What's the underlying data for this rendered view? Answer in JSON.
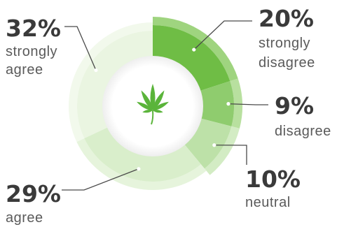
{
  "chart_data": {
    "type": "pie",
    "style": "donut",
    "slices": [
      {
        "percent_label": "20%",
        "value": 20,
        "category": [
          "strongly",
          "disagree"
        ],
        "color": "#6fbd45",
        "rim_color": "#9fd47f"
      },
      {
        "percent_label": "9%",
        "value": 9,
        "category": [
          "disagree"
        ],
        "color": "#8fcc6e",
        "rim_color": "#b8e09f"
      },
      {
        "percent_label": "10%",
        "value": 10,
        "category": [
          "neutral"
        ],
        "color": "#bde1a8",
        "rim_color": "#d3ecc4"
      },
      {
        "percent_label": "29%",
        "value": 29,
        "category": [
          "agree"
        ],
        "color": "#d9eecb",
        "rim_color": "#e6f4dc"
      },
      {
        "percent_label": "32%",
        "value": 32,
        "category": [
          "strongly",
          "agree"
        ],
        "color": "#eaf5e1",
        "rim_color": "#f2f9ec"
      }
    ],
    "center_icon": "cannabis-leaf-icon",
    "center_icon_color": "#5ab43a"
  }
}
